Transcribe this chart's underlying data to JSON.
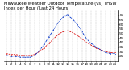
{
  "title_line1": "Milwaukee Weather Outdoor Temperature (vs) THSW Index per Hour (Last 24 Hours)",
  "title_fontsize": 3.8,
  "background_color": "#ffffff",
  "grid_color": "#aaaaaa",
  "hours": [
    1,
    2,
    3,
    4,
    5,
    6,
    7,
    8,
    9,
    10,
    11,
    12,
    13,
    14,
    15,
    16,
    17,
    18,
    19,
    20,
    21,
    22,
    23,
    24
  ],
  "temp": [
    28,
    27,
    27,
    26,
    26,
    26,
    27,
    30,
    34,
    39,
    44,
    49,
    52,
    53,
    51,
    48,
    44,
    40,
    37,
    34,
    32,
    30,
    29,
    29
  ],
  "thsw": [
    26,
    25,
    25,
    24,
    24,
    24,
    26,
    31,
    38,
    46,
    54,
    62,
    68,
    70,
    66,
    60,
    52,
    44,
    39,
    35,
    32,
    29,
    28,
    28
  ],
  "temp_color": "#dd1111",
  "thsw_color": "#0033cc",
  "ylim_min": 20,
  "ylim_max": 75,
  "yticks": [
    25,
    30,
    35,
    40,
    45,
    50,
    55,
    60,
    65,
    70
  ],
  "ytick_fontsize": 3.2,
  "xtick_fontsize": 2.8,
  "line_width": 0.6,
  "marker_size": 0.7
}
